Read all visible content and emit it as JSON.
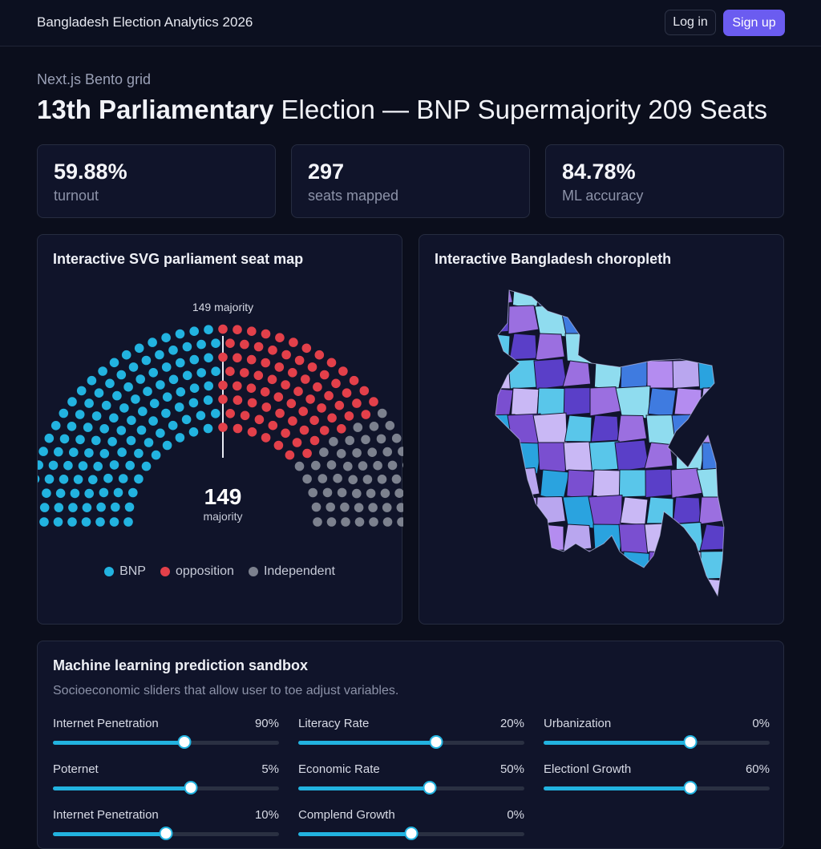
{
  "header": {
    "brand": "Bangladesh Election Analytics 2026",
    "login_label": "Log in",
    "signup_label": "Sign up"
  },
  "hero": {
    "eyebrow": "Next.js Bento grid",
    "title_bold": "13th Parliamentary",
    "title_rest": " Election — BNP Supermajority 209 Seats"
  },
  "stats": [
    {
      "value": "59.88%",
      "label": "turnout"
    },
    {
      "value": "297",
      "label": "seats mapped"
    },
    {
      "value": "84.78%",
      "label": "ML accuracy"
    }
  ],
  "seat_map": {
    "title": "Interactive SVG parliament seat map",
    "majority_line_label": "149 majority",
    "center_value": "149",
    "center_label": "majority",
    "legend": [
      {
        "label": "BNP",
        "color": "#22b3e0"
      },
      {
        "label": "opposition",
        "color": "#e3404a"
      },
      {
        "label": "Independent",
        "color": "#7c818e"
      }
    ]
  },
  "choropleth": {
    "title": "Interactive Bangladesh choropleth",
    "palette": [
      "#9b6fe0",
      "#b48cf0",
      "#7a4fd0",
      "#5a3fc8",
      "#3f7be0",
      "#2aa3df",
      "#59c6ea",
      "#8fdcef",
      "#b9a6ef",
      "#c9b8f5"
    ]
  },
  "sandbox": {
    "title": "Machine learning prediction sandbox",
    "subtitle": "Socioeconomic sliders that allow user to toe adjust variables.",
    "sliders": [
      {
        "label": "Internet Penetration",
        "value": "90%",
        "position": 0.58
      },
      {
        "label": "Literacy Rate",
        "value": "20%",
        "position": 0.61
      },
      {
        "label": "Urbanization",
        "value": "0%",
        "position": 0.65
      },
      {
        "label": "Poternet",
        "value": "5%",
        "position": 0.61
      },
      {
        "label": "Economic Rate",
        "value": "50%",
        "position": 0.58
      },
      {
        "label": "Electionl Growth",
        "value": "60%",
        "position": 0.65
      },
      {
        "label": "Internet Penetration",
        "value": "10%",
        "position": 0.5
      },
      {
        "label": "Compleпd Growth",
        "value": "0%",
        "position": 0.5
      }
    ]
  }
}
